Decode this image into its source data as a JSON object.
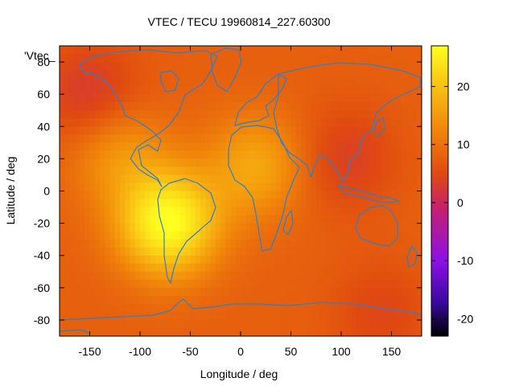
{
  "chart_data": {
    "type": "heatmap",
    "title": "VTEC / TECU 19960814_227.60300",
    "xlabel": "Longitude / deg",
    "ylabel": "Latitude / deg",
    "xlim": [
      -180,
      180
    ],
    "ylim": [
      -90,
      90
    ],
    "xticks": [
      -150,
      -100,
      -50,
      0,
      50,
      100,
      150
    ],
    "yticks": [
      -80,
      -60,
      -40,
      -20,
      0,
      20,
      40,
      60,
      80
    ],
    "legend_label": "'Vtec_",
    "legend_position": "top-left",
    "colorbar": {
      "range": [
        -23,
        27
      ],
      "ticks": [
        -20,
        -10,
        0,
        10,
        20
      ],
      "palette": [
        "#000000",
        "#3a0aa0",
        "#8e10e6",
        "#c42070",
        "#e04a10",
        "#f28a0a",
        "#fac814",
        "#ffff20"
      ]
    },
    "background_level": 8,
    "features": [
      {
        "name": "south-america-peak",
        "lon": -72,
        "lat": -20,
        "value": 27
      },
      {
        "name": "africa-crest",
        "lon": 15,
        "lat": 15,
        "value": 16
      },
      {
        "name": "north-pacific-crest",
        "lon": -120,
        "lat": 22,
        "value": 14
      },
      {
        "name": "asia-trough",
        "lon": 105,
        "lat": 20,
        "value": 4
      },
      {
        "name": "north-pacific-trough",
        "lon": -150,
        "lat": 60,
        "value": 3
      },
      {
        "name": "southern-low",
        "lon": 140,
        "lat": -75,
        "value": 5
      }
    ]
  }
}
